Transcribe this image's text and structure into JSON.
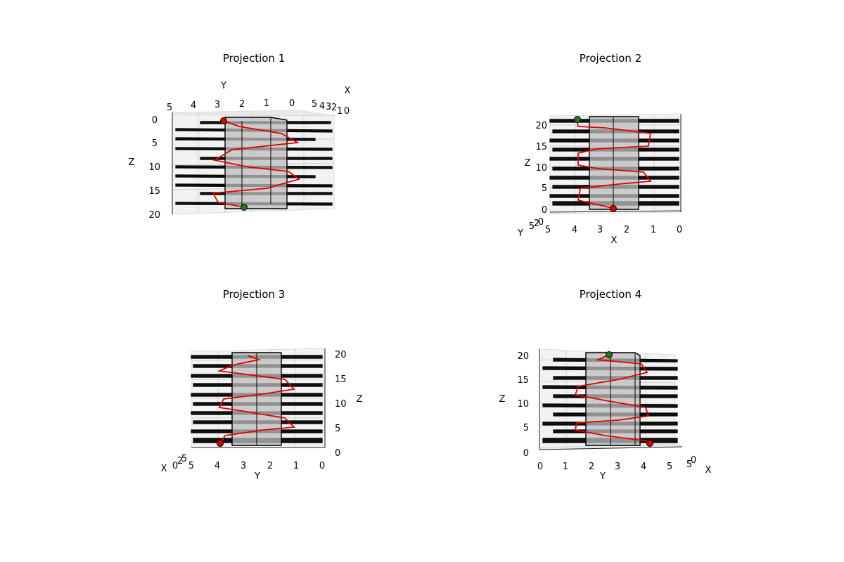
{
  "chart_data": [
    {
      "type": "line",
      "title": "Projection 1",
      "xlabel": "X",
      "ylabel": "Y",
      "zlabel": "Z",
      "x_ticks": [
        "0",
        "2",
        "3",
        "4",
        "5"
      ],
      "y_ticks": [
        "5",
        "4",
        "3",
        "2",
        "1",
        "0"
      ],
      "z_ticks": [
        "0",
        "5",
        "10",
        "15",
        "20"
      ],
      "extra_tick": "1",
      "zlim": [
        0,
        20
      ]
    },
    {
      "type": "line",
      "title": "Projection 2",
      "xlabel": "X",
      "ylabel": "Y",
      "zlabel": "Z",
      "x_ticks": [
        "5",
        "4",
        "3",
        "2",
        "1",
        "0"
      ],
      "y_ticks": [
        "5",
        "2",
        "0"
      ],
      "z_ticks": [
        "0",
        "5",
        "10",
        "15",
        "20"
      ],
      "zlim": [
        0,
        20
      ]
    },
    {
      "type": "line",
      "title": "Projection 3",
      "xlabel": "X",
      "ylabel": "Y",
      "zlabel": "Z",
      "x_ticks": [
        "0",
        "2",
        "5"
      ],
      "y_ticks": [
        "5",
        "4",
        "3",
        "2",
        "1",
        "0"
      ],
      "z_ticks": [
        "0",
        "5",
        "10",
        "15",
        "20"
      ],
      "zlim": [
        0,
        20
      ]
    },
    {
      "type": "line",
      "title": "Projection 4",
      "xlabel": "X",
      "ylabel": "Y",
      "zlabel": "Z",
      "x_ticks": [
        "5",
        "0"
      ],
      "y_ticks": [
        "0",
        "1",
        "2",
        "3",
        "4",
        "5"
      ],
      "z_ticks": [
        "0",
        "5",
        "10",
        "15",
        "20"
      ],
      "zlim": [
        0,
        20
      ]
    }
  ],
  "colors": {
    "path": "#e00000",
    "start_marker": "#e00000",
    "end_marker": "#1e7a1e",
    "shelf": "#111111",
    "column": "#bdbdbd"
  }
}
